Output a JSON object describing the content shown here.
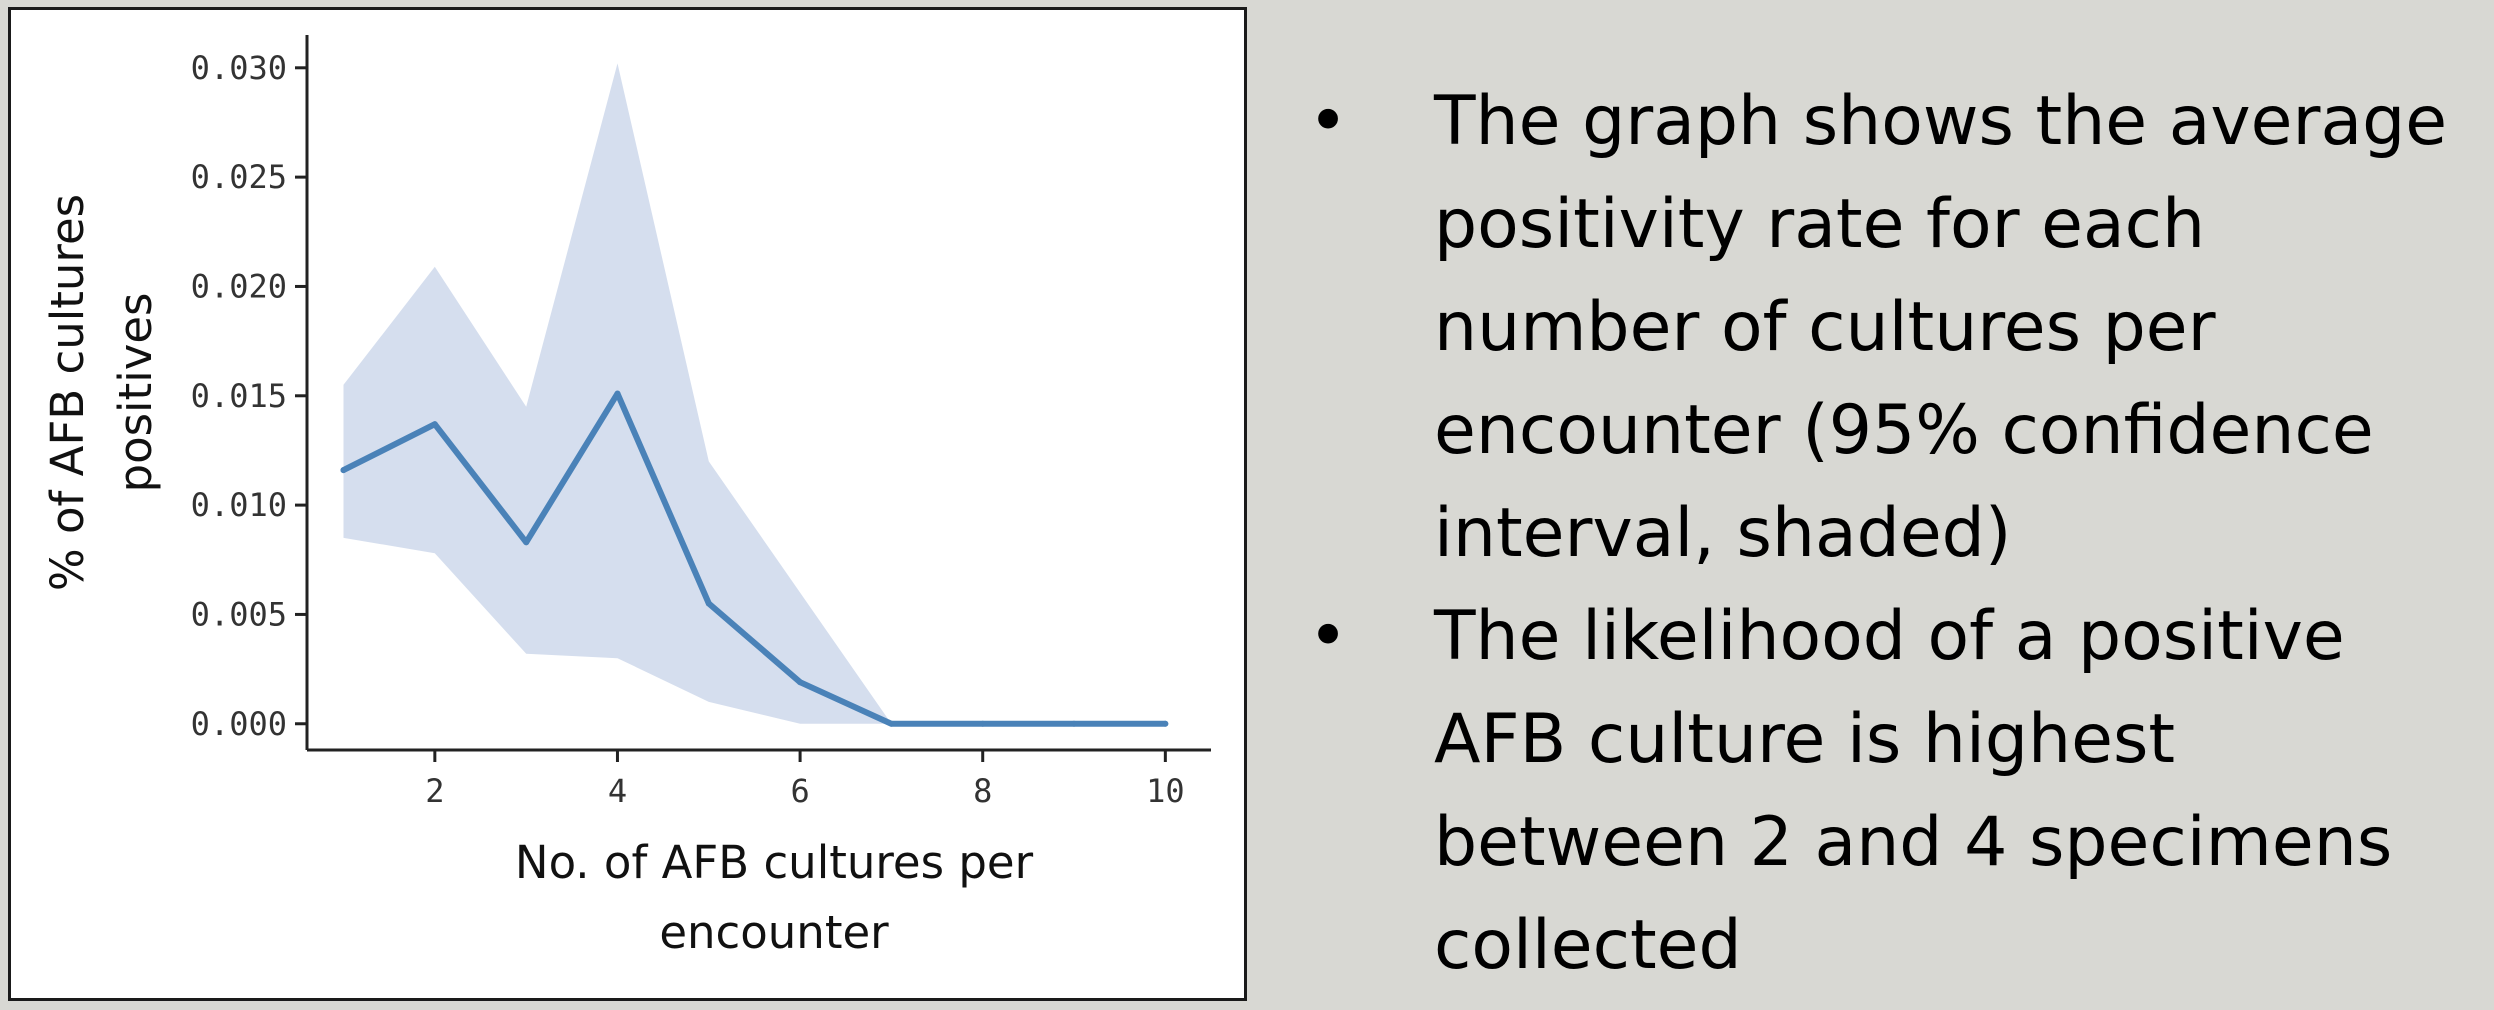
{
  "chart_data": {
    "type": "line",
    "title": "",
    "xlabel_lines": [
      "No. of AFB cultures per",
      "encounter"
    ],
    "ylabel_lines": [
      "% of AFB cultures",
      "positives"
    ],
    "xlim": [
      0.6,
      10.5
    ],
    "ylim": [
      -0.0012,
      0.0315
    ],
    "x_ticks": [
      2,
      4,
      6,
      8,
      10
    ],
    "x_tick_labels": [
      "2",
      "4",
      "6",
      "8",
      "10"
    ],
    "y_ticks": [
      0,
      0.005,
      0.01,
      0.015,
      0.02,
      0.025,
      0.03
    ],
    "y_tick_labels": [
      "0.000",
      "0.005",
      "0.010",
      "0.015",
      "0.020",
      "0.025",
      "0.030"
    ],
    "grid": false,
    "legend": "none",
    "series": [
      {
        "x": [
          1,
          2,
          3,
          4,
          5,
          6,
          7,
          8,
          9,
          10
        ],
        "y": [
          0.0116,
          0.0137,
          0.0083,
          0.0151,
          0.0055,
          0.0019,
          0.0,
          0.0,
          0.0,
          0.0
        ],
        "ci_lower": [
          0.0085,
          0.0078,
          0.0032,
          0.003,
          0.001,
          0.0,
          0.0,
          0.0,
          0.0,
          0.0
        ],
        "ci_upper": [
          0.0155,
          0.0209,
          0.0145,
          0.0302,
          0.012,
          0.006,
          0.0,
          0.0,
          0.0,
          0.0
        ]
      }
    ],
    "line_color": "#4a82b8",
    "band_color": "#d5deee"
  },
  "bullets": [
    "The graph shows the average positivity rate for each number of cultures per encounter (95% confidence interval, shaded)",
    "The likelihood of a positive AFB culture is highest between 2 and 4 specimens collected"
  ],
  "bullet_symbol": "•"
}
